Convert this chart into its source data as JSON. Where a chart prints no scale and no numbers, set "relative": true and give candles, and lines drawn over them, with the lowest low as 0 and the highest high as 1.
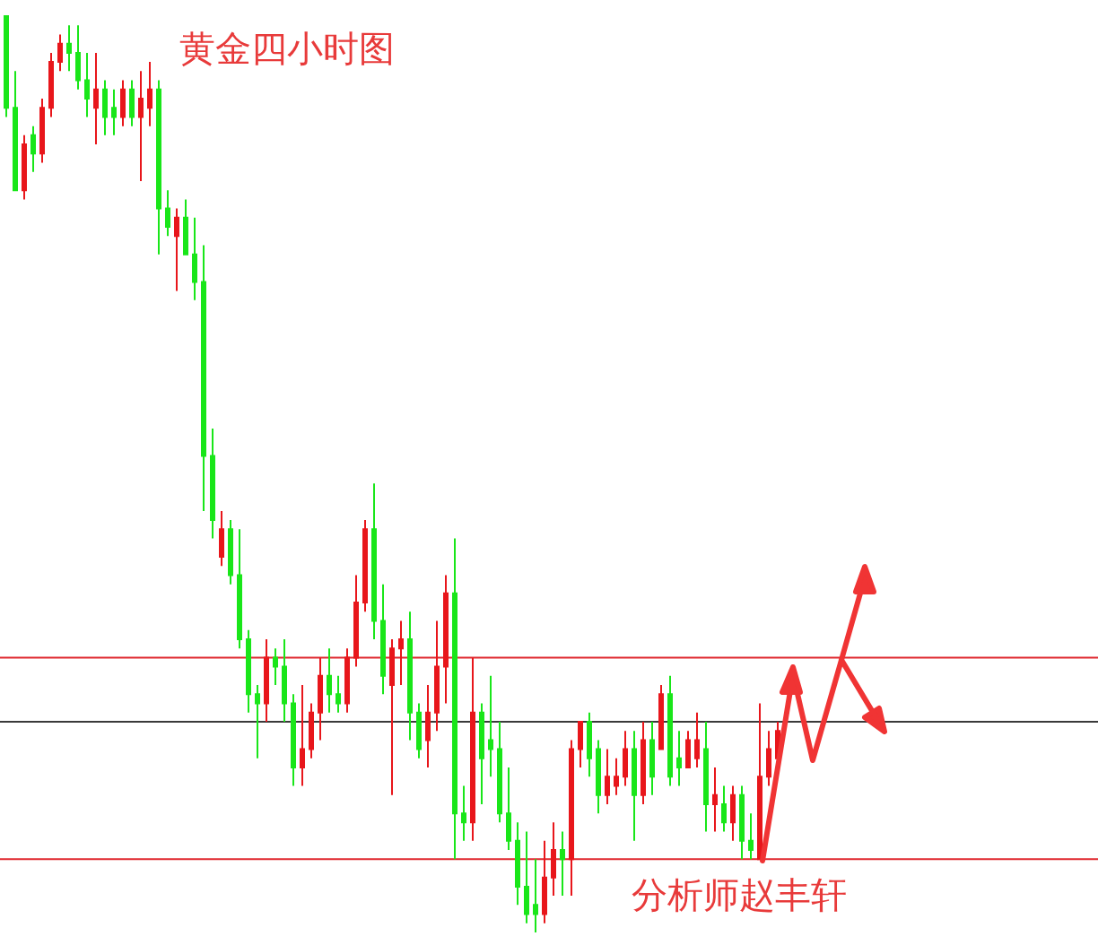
{
  "chart_data": {
    "type": "candlestick",
    "title": "黄金四小时图",
    "relative": true,
    "annotations": [
      "分析师赵丰轩"
    ],
    "categories": [
      null,
      null,
      null,
      null,
      null,
      null,
      null,
      null,
      null,
      null,
      null,
      null,
      null,
      null,
      null,
      null,
      null,
      null,
      null,
      null,
      null,
      null,
      null,
      null,
      null,
      null,
      null,
      null,
      null,
      null,
      null,
      null,
      null,
      null,
      null,
      null,
      null,
      null,
      null,
      null,
      null,
      null,
      null,
      null,
      null,
      null,
      null,
      null,
      null,
      null,
      null,
      null,
      null,
      null,
      null,
      null,
      null,
      null,
      null,
      null,
      null,
      null,
      null,
      null,
      null,
      null,
      null,
      null,
      null,
      null,
      null,
      null,
      null,
      null,
      null,
      null,
      null,
      null,
      null,
      null,
      null,
      null,
      null,
      null,
      null,
      null,
      null
    ],
    "ohlc": [
      [
        1.0,
        1.0,
        0.89,
        0.9
      ],
      [
        0.9,
        0.94,
        0.81,
        0.81
      ],
      [
        0.81,
        0.87,
        0.8,
        0.86
      ],
      [
        0.87,
        0.88,
        0.83,
        0.85
      ],
      [
        0.85,
        0.91,
        0.84,
        0.9
      ],
      [
        0.9,
        0.96,
        0.89,
        0.95
      ],
      [
        0.95,
        0.98,
        0.94,
        0.97
      ],
      [
        0.97,
        0.99,
        0.94,
        0.96
      ],
      [
        0.96,
        0.99,
        0.92,
        0.93
      ],
      [
        0.93,
        0.96,
        0.89,
        0.91
      ],
      [
        0.9,
        0.96,
        0.86,
        0.92
      ],
      [
        0.92,
        0.93,
        0.87,
        0.89
      ],
      [
        0.9,
        0.92,
        0.87,
        0.89
      ],
      [
        0.89,
        0.93,
        0.88,
        0.92
      ],
      [
        0.92,
        0.93,
        0.88,
        0.89
      ],
      [
        0.89,
        0.94,
        0.82,
        0.91
      ],
      [
        0.9,
        0.95,
        0.88,
        0.92
      ],
      [
        0.92,
        0.93,
        0.74,
        0.79
      ],
      [
        0.79,
        0.81,
        0.76,
        0.77
      ],
      [
        0.76,
        0.79,
        0.7,
        0.78
      ],
      [
        0.78,
        0.8,
        0.74,
        0.74
      ],
      [
        0.74,
        0.78,
        0.69,
        0.71
      ],
      [
        0.71,
        0.75,
        0.46,
        0.52
      ],
      [
        0.52,
        0.55,
        0.43,
        0.45
      ],
      [
        0.41,
        0.46,
        0.4,
        0.44
      ],
      [
        0.44,
        0.45,
        0.38,
        0.39
      ],
      [
        0.39,
        0.44,
        0.31,
        0.32
      ],
      [
        0.32,
        0.33,
        0.24,
        0.26
      ],
      [
        0.26,
        0.27,
        0.19,
        0.25
      ],
      [
        0.25,
        0.32,
        0.23,
        0.3
      ],
      [
        0.3,
        0.31,
        0.27,
        0.29
      ],
      [
        0.29,
        0.32,
        0.23,
        0.25
      ],
      [
        0.25,
        0.26,
        0.16,
        0.18
      ],
      [
        0.18,
        0.27,
        0.16,
        0.2
      ],
      [
        0.2,
        0.25,
        0.19,
        0.24
      ],
      [
        0.24,
        0.3,
        0.21,
        0.28
      ],
      [
        0.28,
        0.31,
        0.24,
        0.26
      ],
      [
        0.26,
        0.28,
        0.24,
        0.25
      ],
      [
        0.25,
        0.31,
        0.24,
        0.3
      ],
      [
        0.3,
        0.39,
        0.29,
        0.36
      ],
      [
        0.36,
        0.45,
        0.35,
        0.44
      ],
      [
        0.44,
        0.49,
        0.32,
        0.34
      ],
      [
        0.34,
        0.38,
        0.26,
        0.28
      ],
      [
        0.27,
        0.32,
        0.15,
        0.31
      ],
      [
        0.31,
        0.34,
        0.27,
        0.32
      ],
      [
        0.32,
        0.35,
        0.21,
        0.24
      ],
      [
        0.24,
        0.25,
        0.19,
        0.2
      ],
      [
        0.21,
        0.27,
        0.18,
        0.24
      ],
      [
        0.24,
        0.34,
        0.22,
        0.29
      ],
      [
        0.29,
        0.39,
        0.25,
        0.37
      ],
      [
        0.37,
        0.43,
        0.08,
        0.13
      ],
      [
        0.13,
        0.16,
        0.1,
        0.12
      ],
      [
        0.12,
        0.3,
        0.1,
        0.24
      ],
      [
        0.24,
        0.25,
        0.14,
        0.19
      ],
      [
        0.21,
        0.28,
        0.17,
        0.2
      ],
      [
        0.2,
        0.23,
        0.12,
        0.13
      ],
      [
        0.13,
        0.18,
        0.09,
        0.1
      ],
      [
        0.1,
        0.12,
        0.03,
        0.05
      ],
      [
        0.05,
        0.11,
        0.01,
        0.02
      ],
      [
        0.03,
        0.08,
        0.0,
        0.02
      ],
      [
        0.02,
        0.1,
        0.01,
        0.06
      ],
      [
        0.06,
        0.12,
        0.04,
        0.09
      ],
      [
        0.09,
        0.11,
        0.04,
        0.08
      ],
      [
        0.08,
        0.21,
        0.04,
        0.2
      ],
      [
        0.2,
        0.23,
        0.18,
        0.23
      ],
      [
        0.23,
        0.24,
        0.17,
        0.19
      ],
      [
        0.2,
        0.21,
        0.13,
        0.15
      ],
      [
        0.15,
        0.2,
        0.14,
        0.17
      ],
      [
        0.16,
        0.19,
        0.15,
        0.17
      ],
      [
        0.17,
        0.22,
        0.16,
        0.2
      ],
      [
        0.2,
        0.22,
        0.1,
        0.15
      ],
      [
        0.15,
        0.23,
        0.14,
        0.21
      ],
      [
        0.21,
        0.23,
        0.15,
        0.17
      ],
      [
        0.2,
        0.27,
        0.2,
        0.26
      ],
      [
        0.26,
        0.28,
        0.16,
        0.17
      ],
      [
        0.19,
        0.22,
        0.16,
        0.18
      ],
      [
        0.18,
        0.22,
        0.18,
        0.21
      ],
      [
        0.19,
        0.24,
        0.18,
        0.21
      ],
      [
        0.2,
        0.23,
        0.11,
        0.14
      ],
      [
        0.14,
        0.18,
        0.11,
        0.15
      ],
      [
        0.14,
        0.16,
        0.11,
        0.12
      ],
      [
        0.12,
        0.16,
        0.1,
        0.15
      ],
      [
        0.15,
        0.16,
        0.08,
        0.1
      ],
      [
        0.1,
        0.13,
        0.08,
        0.09
      ],
      [
        0.08,
        0.25,
        0.08,
        0.17
      ],
      [
        0.17,
        0.22,
        0.16,
        0.2
      ],
      [
        0.19,
        0.23,
        0.18,
        0.22
      ]
    ],
    "ref_lines": [
      {
        "axis": "y",
        "value": 0.3,
        "color": "#e0282e"
      },
      {
        "axis": "y",
        "value": 0.23,
        "color": "#3a3a3a"
      },
      {
        "axis": "y",
        "value": 0.08,
        "color": "#e0282e"
      }
    ]
  }
}
